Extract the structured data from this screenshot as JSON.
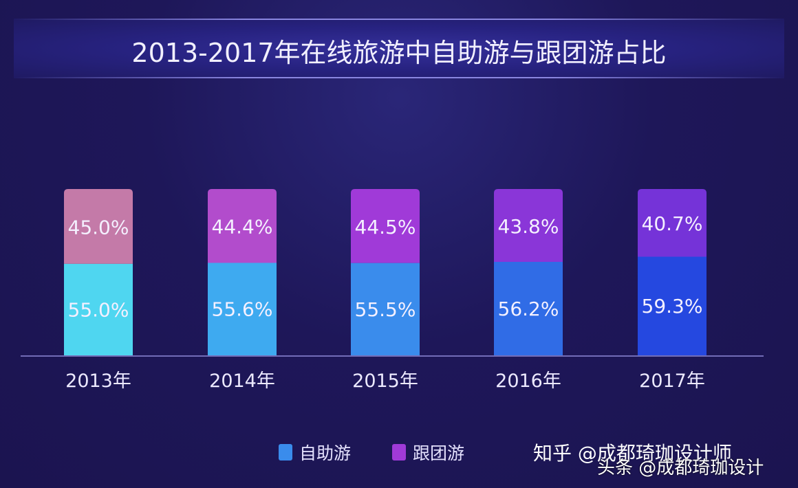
{
  "chart_data": {
    "type": "bar",
    "stacked": true,
    "title": "2013-2017年在线旅游中自助游与跟团游占比",
    "categories": [
      "2013年",
      "2014年",
      "2015年",
      "2016年",
      "2017年"
    ],
    "series": [
      {
        "name": "自助游",
        "values": [
          55.0,
          55.6,
          55.5,
          56.2,
          59.3
        ],
        "labels": [
          "55.0%",
          "55.6%",
          "55.5%",
          "56.2%",
          "59.3%"
        ],
        "colors": [
          "#4fd6f0",
          "#3eaaf0",
          "#3a8cec",
          "#306ce6",
          "#2548e0"
        ]
      },
      {
        "name": "跟团游",
        "values": [
          45.0,
          44.4,
          44.5,
          43.8,
          40.7
        ],
        "labels": [
          "45.0%",
          "44.4%",
          "44.5%",
          "43.8%",
          "40.7%"
        ],
        "colors": [
          "#c47aa8",
          "#b24ccc",
          "#a03ad8",
          "#8a36d8",
          "#7533d8"
        ]
      }
    ],
    "ylim": [
      0,
      100
    ],
    "grid": false,
    "legend": "bottom-right",
    "background": "#1e1656"
  },
  "legend": {
    "items": [
      {
        "label": "自助游",
        "color": "#3a8cec"
      },
      {
        "label": "跟团游",
        "color": "#a03ad8"
      }
    ]
  },
  "watermarks": [
    "知乎 @成都琦珈设计师",
    "头条 @成都琦珈设计"
  ]
}
